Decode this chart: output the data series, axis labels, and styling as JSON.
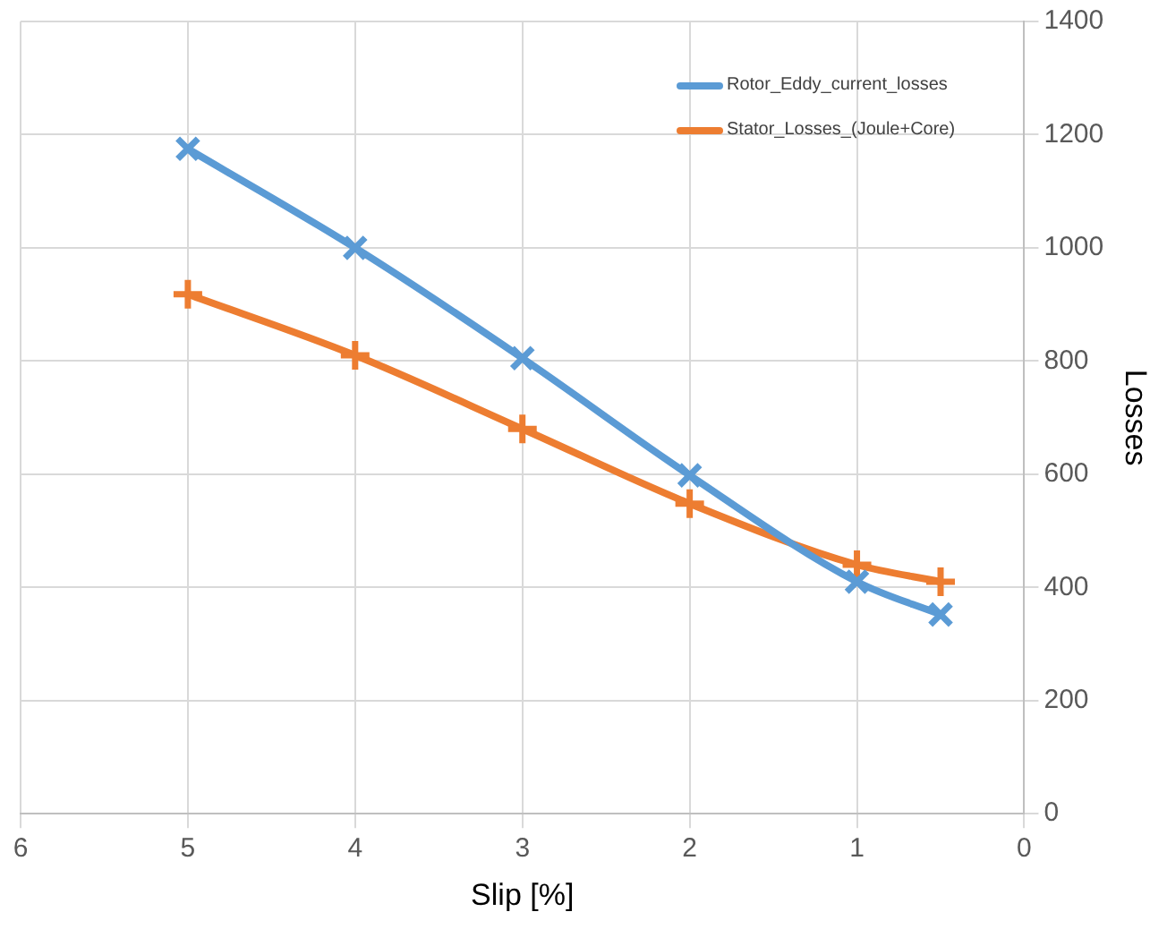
{
  "chart_data": {
    "type": "line",
    "xlabel": "Slip [%]",
    "ylabel": "Losses",
    "xlim": [
      6,
      0
    ],
    "xticks": [
      6,
      5,
      4,
      3,
      2,
      1,
      0
    ],
    "ylim": [
      0,
      1400
    ],
    "yticks": [
      0,
      200,
      400,
      600,
      800,
      1000,
      1200,
      1400
    ],
    "grid": true,
    "legend": "top right",
    "series": [
      {
        "name": "Rotor_Eddy_current_losses",
        "color": "#5b9bd5",
        "marker": "cross",
        "x": [
          5,
          4,
          3,
          2,
          1,
          0.5
        ],
        "values": [
          1175,
          1000,
          805,
          598,
          410,
          352
        ]
      },
      {
        "name": "Stator_Losses_(Joule+Core)",
        "color": "#ed7d31",
        "marker": "plus",
        "x": [
          5,
          4,
          3,
          2,
          1,
          0.5
        ],
        "values": [
          918,
          810,
          680,
          548,
          440,
          410
        ]
      }
    ]
  }
}
